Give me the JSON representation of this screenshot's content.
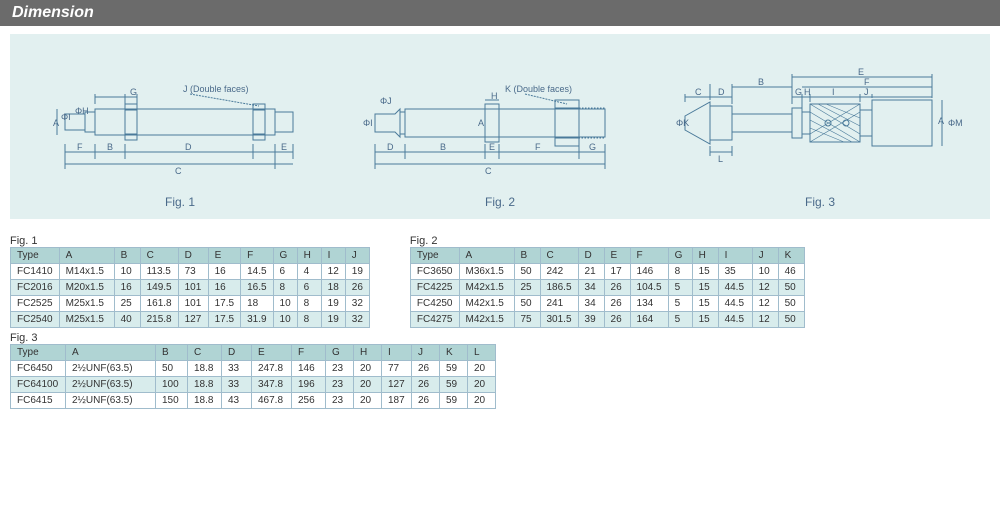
{
  "header": {
    "title": "Dimension"
  },
  "colors": {
    "header_bg": "#6b6b6b",
    "diagram_bg": "#e2f0f0",
    "diagram_stroke": "#4a7a9a",
    "table_border": "#a0bccc",
    "table_header_bg": "#b0d4d4",
    "table_alt_bg": "#d8ecec",
    "text": "#333333"
  },
  "figures": {
    "fig1_label": "Fig. 1",
    "fig2_label": "Fig. 2",
    "fig3_label": "Fig. 3",
    "fig1_annot": "J (Double faces)",
    "fig2_annot": "K (Double faces)",
    "dim_letters": [
      "A",
      "B",
      "C",
      "D",
      "E",
      "F",
      "G",
      "H",
      "I",
      "J",
      "K",
      "L",
      "M"
    ]
  },
  "table_fig1": {
    "caption": "Fig. 1",
    "columns": [
      "Type",
      "A",
      "B",
      "C",
      "D",
      "E",
      "F",
      "G",
      "H",
      "I",
      "J"
    ],
    "rows": [
      [
        "FC1410",
        "M14x1.5",
        "10",
        "113.5",
        "73",
        "16",
        "14.5",
        "6",
        "4",
        "12",
        "19"
      ],
      [
        "FC2016",
        "M20x1.5",
        "16",
        "149.5",
        "101",
        "16",
        "16.5",
        "8",
        "6",
        "18",
        "26"
      ],
      [
        "FC2525",
        "M25x1.5",
        "25",
        "161.8",
        "101",
        "17.5",
        "18",
        "10",
        "8",
        "19",
        "32"
      ],
      [
        "FC2540",
        "M25x1.5",
        "40",
        "215.8",
        "127",
        "17.5",
        "31.9",
        "10",
        "8",
        "19",
        "32"
      ]
    ]
  },
  "table_fig2": {
    "caption": "Fig. 2",
    "columns": [
      "Type",
      "A",
      "B",
      "C",
      "D",
      "E",
      "F",
      "G",
      "H",
      "I",
      "J",
      "K"
    ],
    "rows": [
      [
        "FC3650",
        "M36x1.5",
        "50",
        "242",
        "21",
        "17",
        "146",
        "8",
        "15",
        "35",
        "10",
        "46"
      ],
      [
        "FC4225",
        "M42x1.5",
        "25",
        "186.5",
        "34",
        "26",
        "104.5",
        "5",
        "15",
        "44.5",
        "12",
        "50"
      ],
      [
        "FC4250",
        "M42x1.5",
        "50",
        "241",
        "34",
        "26",
        "134",
        "5",
        "15",
        "44.5",
        "12",
        "50"
      ],
      [
        "FC4275",
        "M42x1.5",
        "75",
        "301.5",
        "39",
        "26",
        "164",
        "5",
        "15",
        "44.5",
        "12",
        "50"
      ]
    ]
  },
  "table_fig3": {
    "caption": "Fig. 3",
    "columns": [
      "Type",
      "A",
      "B",
      "C",
      "D",
      "E",
      "F",
      "G",
      "H",
      "I",
      "J",
      "K",
      "L"
    ],
    "rows": [
      [
        "FC6450",
        "2½UNF(63.5)",
        "50",
        "18.8",
        "33",
        "247.8",
        "146",
        "23",
        "20",
        "77",
        "26",
        "59",
        "20"
      ],
      [
        "FC64100",
        "2½UNF(63.5)",
        "100",
        "18.8",
        "33",
        "347.8",
        "196",
        "23",
        "20",
        "127",
        "26",
        "59",
        "20"
      ],
      [
        "FC6415",
        "2½UNF(63.5)",
        "150",
        "18.8",
        "43",
        "467.8",
        "256",
        "23",
        "20",
        "187",
        "26",
        "59",
        "20"
      ]
    ]
  },
  "col_widths": {
    "fig1": [
      48,
      55,
      26,
      38,
      30,
      30,
      32,
      24,
      24,
      24,
      24
    ],
    "fig2": [
      48,
      55,
      26,
      38,
      26,
      26,
      34,
      24,
      26,
      34,
      26,
      26
    ],
    "fig3": [
      55,
      90,
      32,
      34,
      30,
      40,
      34,
      28,
      28,
      30,
      28,
      28,
      28
    ]
  }
}
